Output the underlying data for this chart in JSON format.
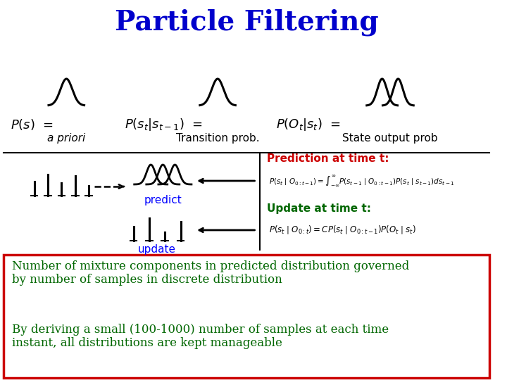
{
  "title": "Particle Filtering",
  "title_color": "#0000CC",
  "title_fontsize": 28,
  "bg_color": "#FFFFFF",
  "predict_text": "Prediction at time t:",
  "update_text": "Update at time t:",
  "predict_text_color": "#CC0000",
  "update_text_color": "#006600",
  "bottom_text1": "Number of mixture components in predicted distribution governed\nby number of samples in discrete distribution",
  "bottom_text2": "By deriving a small (100-1000) number of samples at each time\ninstant, all distributions are kept manageable",
  "bottom_text_color": "#006600",
  "border_color": "#CC0000"
}
